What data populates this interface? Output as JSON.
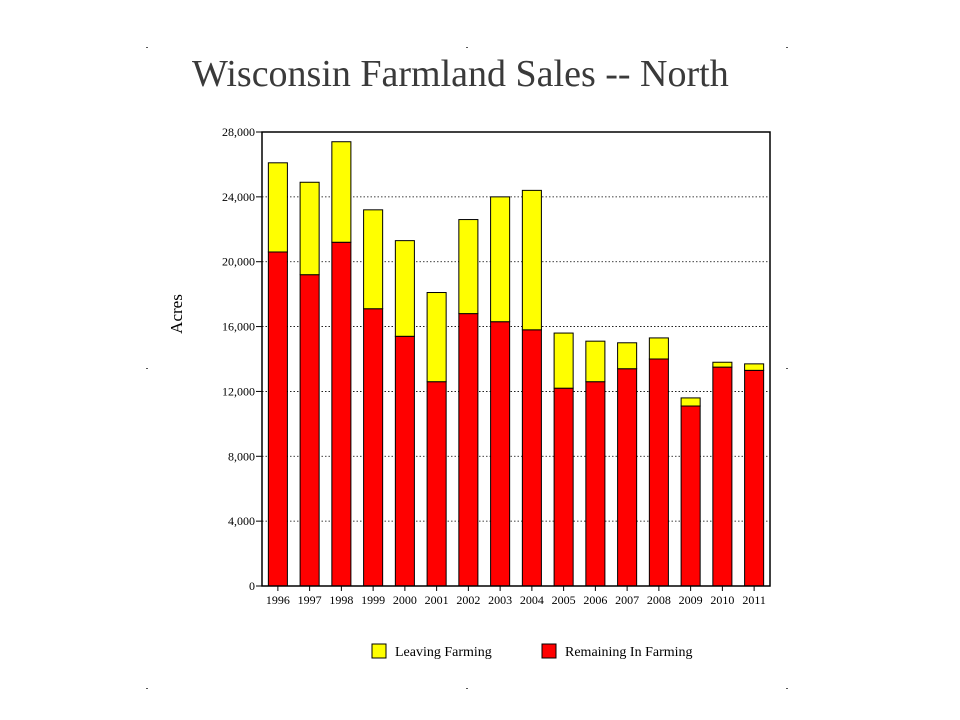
{
  "slide": {
    "title": "Wisconsin Farmland Sales -- North"
  },
  "chart_data": {
    "type": "bar",
    "stacked": true,
    "categories": [
      "1996",
      "1997",
      "1998",
      "1999",
      "2000",
      "2001",
      "2002",
      "2003",
      "2004",
      "2005",
      "2006",
      "2007",
      "2008",
      "2009",
      "2010",
      "2011"
    ],
    "series": [
      {
        "name": "Remaining In Farming",
        "color": "#ff0000",
        "values": [
          20600,
          19200,
          21200,
          17100,
          15400,
          12600,
          16800,
          16300,
          15800,
          12200,
          12600,
          13400,
          14000,
          11100,
          13500,
          13300
        ]
      },
      {
        "name": "Leaving Farming",
        "color": "#ffff00",
        "values": [
          5500,
          5700,
          6200,
          6100,
          5900,
          5500,
          5800,
          7700,
          8600,
          3400,
          2500,
          1600,
          1300,
          500,
          300,
          400
        ]
      }
    ],
    "title": "",
    "xlabel": "",
    "ylabel": "Acres",
    "ylim": [
      0,
      28000
    ],
    "yticks": [
      0,
      4000,
      8000,
      12000,
      16000,
      20000,
      24000,
      28000
    ],
    "ytick_labels": [
      "0",
      "4,000",
      "8,000",
      "12,000",
      "16,000",
      "20,000",
      "24,000",
      "28,000"
    ],
    "grid": "horizontal dotted",
    "legend": {
      "placement": "bottom",
      "entries": [
        "Leaving Farming",
        "Remaining In Farming"
      ]
    }
  }
}
